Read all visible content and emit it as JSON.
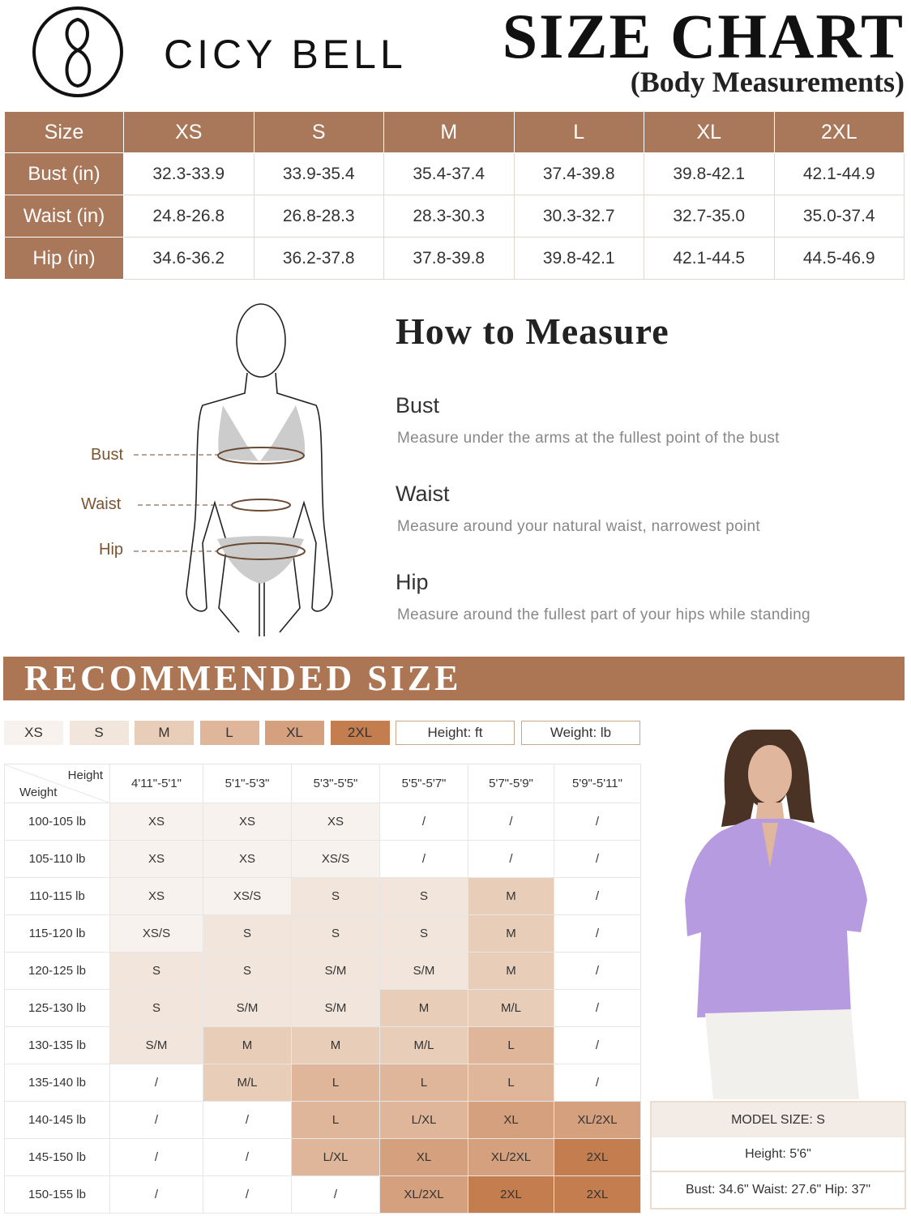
{
  "brand": {
    "name": "CICY BELL"
  },
  "header": {
    "title": "SIZE CHART",
    "subtitle": "(Body Measurements)"
  },
  "size_table": {
    "header": [
      "Size",
      "XS",
      "S",
      "M",
      "L",
      "XL",
      "2XL"
    ],
    "rows": [
      [
        "Bust (in)",
        "32.3-33.9",
        "33.9-35.4",
        "35.4-37.4",
        "37.4-39.8",
        "39.8-42.1",
        "42.1-44.9"
      ],
      [
        "Waist (in)",
        "24.8-26.8",
        "26.8-28.3",
        "28.3-30.3",
        "30.3-32.7",
        "32.7-35.0",
        "35.0-37.4"
      ],
      [
        "Hip (in)",
        "34.6-36.2",
        "36.2-37.8",
        "37.8-39.8",
        "39.8-42.1",
        "42.1-44.5",
        "44.5-46.9"
      ]
    ]
  },
  "how_to": {
    "title": "How to Measure",
    "figure_labels": [
      "Bust",
      "Waist",
      "Hip"
    ],
    "items": [
      {
        "name": "Bust",
        "text": "Measure under the arms at the fullest point of the bust"
      },
      {
        "name": "Waist",
        "text": "Measure around your natural waist, narrowest point"
      },
      {
        "name": "Hip",
        "text": "Measure around the fullest part of your hips while standing"
      }
    ]
  },
  "recommended": {
    "title": "RECOMMENDED SIZE",
    "legend": [
      "XS",
      "S",
      "M",
      "L",
      "XL",
      "2XL",
      "Height: ft",
      "Weight: lb"
    ],
    "corner": {
      "height": "Height",
      "weight": "Weight"
    },
    "heights": [
      "4'11\"-5'1\"",
      "5'1\"-5'3\"",
      "5'3\"-5'5\"",
      "5'5\"-5'7\"",
      "5'7\"-5'9\"",
      "5'9\"-5'11\""
    ],
    "rows": [
      {
        "weight": "100-105 lb",
        "cells": [
          "XS",
          "XS",
          "XS",
          "/",
          "/",
          "/"
        ]
      },
      {
        "weight": "105-110 lb",
        "cells": [
          "XS",
          "XS",
          "XS/S",
          "/",
          "/",
          "/"
        ]
      },
      {
        "weight": "110-115 lb",
        "cells": [
          "XS",
          "XS/S",
          "S",
          "S",
          "M",
          "/"
        ]
      },
      {
        "weight": "115-120 lb",
        "cells": [
          "XS/S",
          "S",
          "S",
          "S",
          "M",
          "/"
        ]
      },
      {
        "weight": "120-125 lb",
        "cells": [
          "S",
          "S",
          "S/M",
          "S/M",
          "M",
          "/"
        ]
      },
      {
        "weight": "125-130 lb",
        "cells": [
          "S",
          "S/M",
          "S/M",
          "M",
          "M/L",
          "/"
        ]
      },
      {
        "weight": "130-135 lb",
        "cells": [
          "S/M",
          "M",
          "M",
          "M/L",
          "L",
          "/"
        ]
      },
      {
        "weight": "135-140 lb",
        "cells": [
          "/",
          "M/L",
          "L",
          "L",
          "L",
          "/"
        ]
      },
      {
        "weight": "140-145 lb",
        "cells": [
          "/",
          "/",
          "L",
          "L/XL",
          "XL",
          "XL/2XL"
        ]
      },
      {
        "weight": "145-150 lb",
        "cells": [
          "/",
          "/",
          "L/XL",
          "XL",
          "XL/2XL",
          "2XL"
        ]
      },
      {
        "weight": "150-155 lb",
        "cells": [
          "/",
          "/",
          "/",
          "XL/2XL",
          "2XL",
          "2XL"
        ]
      }
    ]
  },
  "model": {
    "size": "MODEL SIZE: S",
    "height": "Height: 5'6\"",
    "measurements": "Bust: 34.6\" Waist: 27.6\" Hip: 37\""
  }
}
